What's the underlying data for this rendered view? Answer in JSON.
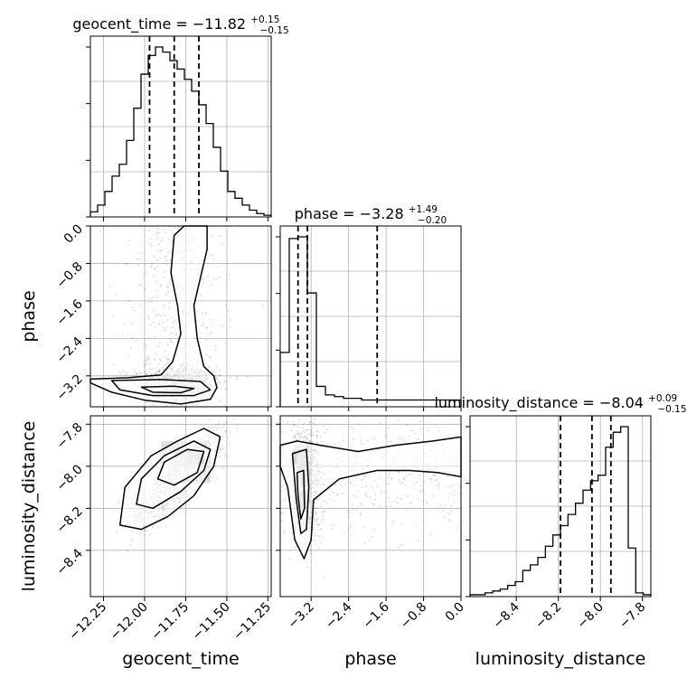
{
  "chart_data": {
    "type": "corner",
    "parameters": [
      {
        "name": "geocent_time",
        "label": "geocent_time",
        "range": [
          -12.33,
          -11.23
        ],
        "ticks": [
          -12.25,
          -12.0,
          -11.75,
          -11.5,
          -11.25
        ],
        "tick_labels": [
          "−12.25",
          "−12.00",
          "−11.75",
          "−11.50",
          "−11.25"
        ],
        "quantiles": [
          -11.97,
          -11.82,
          -11.67
        ]
      },
      {
        "name": "phase",
        "label": "phase",
        "range": [
          -3.86,
          0.0
        ],
        "ticks": [
          -3.2,
          -2.4,
          -1.6,
          -0.8,
          0.0
        ],
        "tick_labels": [
          "−3.2",
          "−2.4",
          "−1.6",
          "−0.8",
          "0.0"
        ],
        "quantiles": [
          -3.48,
          -3.28,
          -1.79
        ]
      },
      {
        "name": "luminosity_distance",
        "label": "luminosity_distance",
        "range": [
          -8.62,
          -7.76
        ],
        "ticks": [
          -8.4,
          -8.2,
          -8.0,
          -7.8
        ],
        "tick_labels": [
          "−8.4",
          "−8.2",
          "−8.0",
          "−7.8"
        ],
        "quantiles": [
          -8.19,
          -8.04,
          -7.95
        ]
      }
    ],
    "titles": [
      {
        "param": "geocent_time",
        "base": "geocent_time = −11.82",
        "plus": "+0.15",
        "minus": "−0.15"
      },
      {
        "param": "phase",
        "base": "phase = −3.28",
        "plus": "+1.49",
        "minus": "−0.20"
      },
      {
        "param": "luminosity_distance",
        "base": "luminosity_distance = −8.04",
        "plus": "+0.09",
        "minus": "−0.15"
      }
    ],
    "histograms": [
      {
        "param": "geocent_time",
        "counts": [
          0.03,
          0.07,
          0.15,
          0.24,
          0.31,
          0.45,
          0.64,
          0.84,
          0.95,
          1.0,
          0.97,
          0.92,
          0.87,
          0.81,
          0.74,
          0.66,
          0.55,
          0.41,
          0.27,
          0.15,
          0.11,
          0.07,
          0.04,
          0.02,
          0.01
        ]
      },
      {
        "param": "phase",
        "counts": [
          0.32,
          0.99,
          1.0,
          0.67,
          0.12,
          0.07,
          0.06,
          0.05,
          0.05,
          0.04,
          0.04,
          0.04,
          0.04,
          0.04,
          0.04,
          0.04,
          0.04,
          0.04,
          0.04,
          0.04
        ]
      },
      {
        "param": "luminosity_distance",
        "counts": [
          0.01,
          0.01,
          0.02,
          0.03,
          0.04,
          0.06,
          0.08,
          0.14,
          0.17,
          0.21,
          0.27,
          0.33,
          0.38,
          0.44,
          0.5,
          0.57,
          0.62,
          0.65,
          0.8,
          0.88,
          0.91,
          0.26,
          0.02,
          0.01
        ]
      }
    ],
    "grid": true,
    "quantile_line_style": "dashed"
  }
}
